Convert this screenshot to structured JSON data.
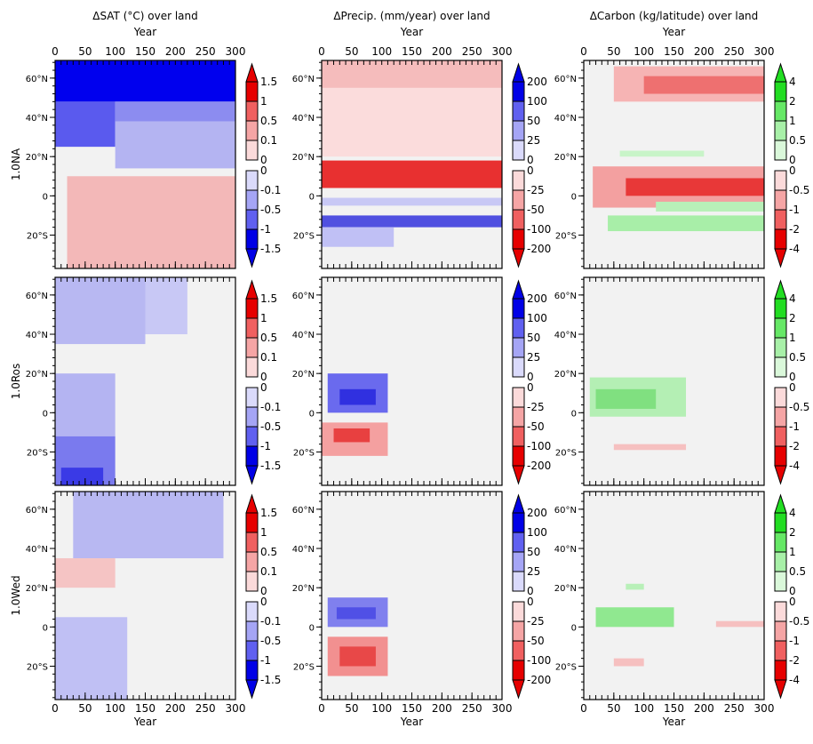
{
  "chart_data": {
    "type": "hovmoller",
    "columns": [
      {
        "title": "ΔSAT (°C) over land",
        "upper": [
          1.5,
          1,
          0.5,
          0.1,
          0
        ],
        "lower": [
          0,
          -0.1,
          -0.5,
          -1,
          -1.5
        ],
        "upper_colors": [
          "#e60000",
          "#f06060",
          "#f5a5a5",
          "#fbdada"
        ],
        "lower_colors": [
          "#dadafb",
          "#a5a5f5",
          "#6060f0",
          "#0000e6"
        ],
        "top_color": "#e60000",
        "bottom_color": "#0000e6"
      },
      {
        "title": "ΔPrecip. (mm/year) over land",
        "upper": [
          200,
          100,
          50,
          25,
          0
        ],
        "lower": [
          0,
          -25,
          -50,
          -100,
          -200
        ],
        "upper_colors": [
          "#0000e6",
          "#6060f0",
          "#a5a5f5",
          "#dadafb"
        ],
        "lower_colors": [
          "#fbdada",
          "#f5a5a5",
          "#f06060",
          "#e60000"
        ],
        "top_color": "#0000e6",
        "bottom_color": "#e60000"
      },
      {
        "title": "ΔCarbon (kg/latitude) over land",
        "upper": [
          4,
          2,
          1,
          0.5,
          0
        ],
        "lower": [
          0,
          -0.5,
          -1,
          -2,
          -4
        ],
        "upper_colors": [
          "#22dd22",
          "#66e866",
          "#a8f0a8",
          "#daf8da"
        ],
        "lower_colors": [
          "#fbdada",
          "#f5a5a5",
          "#f06060",
          "#e60000"
        ],
        "top_color": "#22dd22",
        "bottom_color": "#e60000"
      }
    ],
    "rows": [
      "1.0NA",
      "1.0Ros",
      "1.0Wed"
    ],
    "xlabel": "Year",
    "xlim": [
      0,
      300
    ],
    "xticks": [
      0,
      50,
      100,
      150,
      200,
      250,
      300
    ],
    "ylim": [
      -37,
      69
    ],
    "yticks": [
      {
        "value": 60,
        "label": "60°N"
      },
      {
        "value": 40,
        "label": "40°N"
      },
      {
        "value": 20,
        "label": "20°N"
      },
      0,
      {
        "value": -20,
        "label": "20°S"
      }
    ]
  }
}
